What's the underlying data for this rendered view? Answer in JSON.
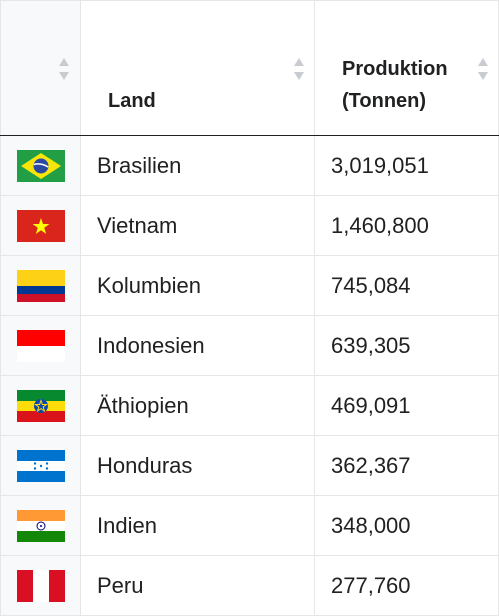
{
  "table": {
    "headers": {
      "flag": "",
      "land": "Land",
      "produktion_line1": "Produktion",
      "produktion_line2": "(Tonnen)"
    },
    "rows": [
      {
        "flag_icon": "brazil-flag-icon",
        "land": "Brasilien",
        "produktion": "3,019,051"
      },
      {
        "flag_icon": "vietnam-flag-icon",
        "land": "Vietnam",
        "produktion": "1,460,800"
      },
      {
        "flag_icon": "colombia-flag-icon",
        "land": "Kolumbien",
        "produktion": "745,084"
      },
      {
        "flag_icon": "indonesia-flag-icon",
        "land": "Indonesien",
        "produktion": "639,305"
      },
      {
        "flag_icon": "ethiopia-flag-icon",
        "land": "Äthiopien",
        "produktion": "469,091"
      },
      {
        "flag_icon": "honduras-flag-icon",
        "land": "Honduras",
        "produktion": "362,367"
      },
      {
        "flag_icon": "india-flag-icon",
        "land": "Indien",
        "produktion": "348,000"
      },
      {
        "flag_icon": "peru-flag-icon",
        "land": "Peru",
        "produktion": "277,760"
      }
    ]
  },
  "colors": {
    "header_rule": "#202122",
    "cell_border": "#e6e6e6",
    "flag_cell_bg": "#f8f9fa",
    "sort_arrow": "#c8ccd1"
  }
}
